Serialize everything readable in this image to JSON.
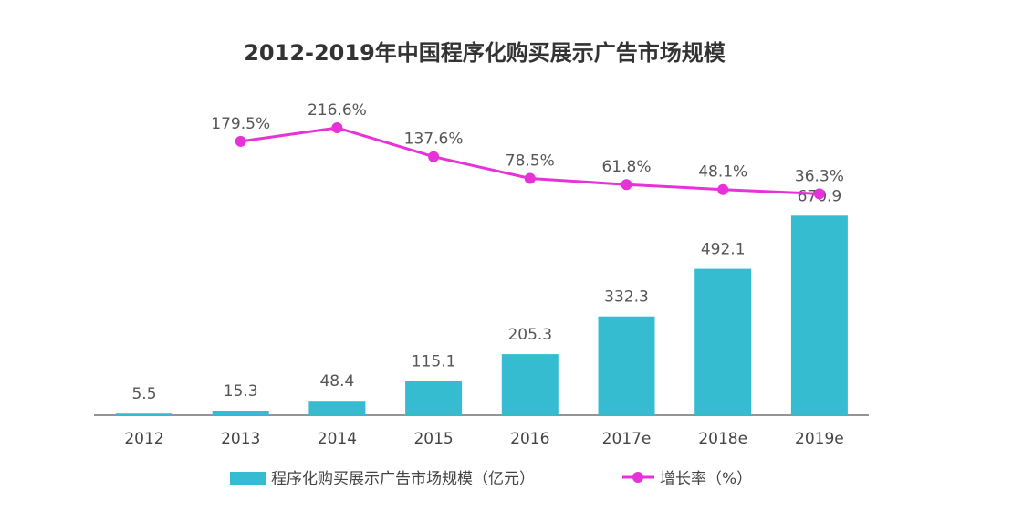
{
  "chart_data": {
    "type": "bar",
    "title": "2012-2019年中国程序化购买展示广告市场规模",
    "categories": [
      "2012",
      "2013",
      "2014",
      "2015",
      "2016",
      "2017e",
      "2018e",
      "2019e"
    ],
    "series": [
      {
        "name": "程序化购买展示广告市场规模（亿元）",
        "type": "bar",
        "values": [
          5.5,
          15.3,
          48.4,
          115.1,
          205.3,
          332.3,
          492.1,
          670.9
        ],
        "labels": [
          "5.5",
          "15.3",
          "48.4",
          "115.1",
          "205.3",
          "332.3",
          "492.1",
          "670.9"
        ],
        "color": "#35bcd1"
      },
      {
        "name": "增长率（%）",
        "type": "line",
        "values": [
          null,
          179.5,
          216.6,
          137.6,
          78.5,
          61.8,
          48.1,
          36.3
        ],
        "labels": [
          "",
          "179.5%",
          "216.6%",
          "137.6%",
          "78.5%",
          "61.8%",
          "48.1%",
          "36.3%"
        ],
        "color": "#e632d8"
      }
    ],
    "legend_position": "bottom",
    "grid": false
  }
}
